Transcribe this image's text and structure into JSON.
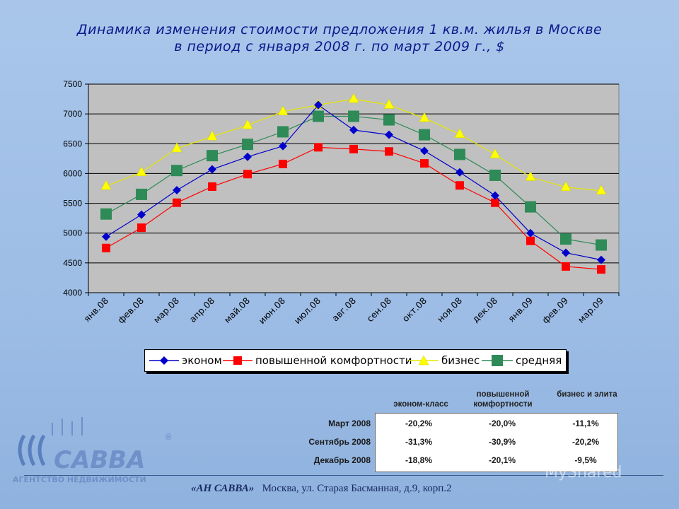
{
  "chart_data": {
    "type": "line",
    "title_line1": "Динамика изменения стоимости предложения 1 кв.м. жилья в Москве",
    "title_line2": "в период с января 2008 г. по март 2009 г., $",
    "categories": [
      "янв.08",
      "фев.08",
      "мар.08",
      "апр.08",
      "май.08",
      "июн.08",
      "июл.08",
      "авг.08",
      "сен.08",
      "окт.08",
      "ноя.08",
      "дек.08",
      "янв.09",
      "фев.09",
      "мар.09"
    ],
    "ylim": [
      4000,
      7500
    ],
    "yticks": [
      4000,
      4500,
      5000,
      5500,
      6000,
      6500,
      7000,
      7500
    ],
    "grid": true,
    "legend_position": "bottom",
    "series": [
      {
        "name": "эконом",
        "color": "#0000cc",
        "marker": "diamond",
        "values": [
          4940,
          5310,
          5720,
          6070,
          6280,
          6460,
          7150,
          6730,
          6650,
          6380,
          6020,
          5630,
          5000,
          4670,
          4550
        ]
      },
      {
        "name": "повышенной комфортности",
        "color": "#ff0000",
        "marker": "square",
        "values": [
          4750,
          5090,
          5510,
          5780,
          5990,
          6160,
          6440,
          6410,
          6370,
          6170,
          5800,
          5510,
          4870,
          4440,
          4390
        ]
      },
      {
        "name": "бизнес",
        "color": "#ffff00",
        "marker": "triangle",
        "values": [
          5790,
          6020,
          6420,
          6620,
          6810,
          7040,
          7150,
          7250,
          7150,
          6930,
          6660,
          6320,
          5940,
          5770,
          5710
        ]
      },
      {
        "name": "средняя",
        "color": "#2e8b57",
        "marker": "square-big",
        "values": [
          5320,
          5650,
          6050,
          6300,
          6490,
          6700,
          6960,
          6960,
          6900,
          6650,
          6320,
          5970,
          5440,
          4900,
          4800
        ]
      }
    ]
  },
  "table": {
    "headers": [
      "эконом-класс",
      "повышенной комфортности",
      "бизнес и элита"
    ],
    "rows": [
      {
        "label": "Март 2008",
        "values": [
          "-20,2%",
          "-20,0%",
          "-11,1%"
        ]
      },
      {
        "label": "Сентябрь 2008",
        "values": [
          "-31,3%",
          "-30,9%",
          "-20,2%"
        ]
      },
      {
        "label": "Декабрь 2008",
        "values": [
          "-18,8%",
          "-20,1%",
          "-9,5%"
        ]
      }
    ]
  },
  "footer": {
    "company": "«АН САВВА»",
    "address": "Москва, ул. Старая Басманная, д.9, корп.2"
  },
  "logo": {
    "brand": "САВВА",
    "tagline": "АГЕНТСТВО НЕДВИЖИМОСТИ",
    "registered": "®"
  },
  "watermark": "MyShared"
}
